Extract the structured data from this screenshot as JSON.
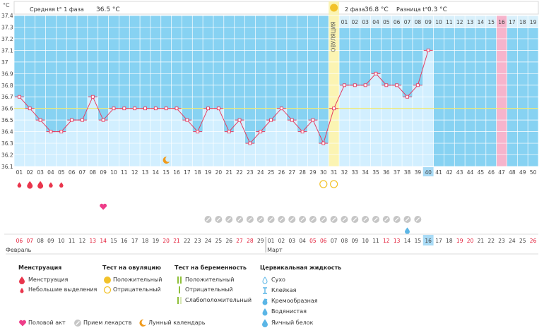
{
  "chart_data": {
    "type": "line",
    "y_unit": "°C",
    "ylim": [
      36.1,
      37.4
    ],
    "yticks": [
      "36.1",
      "36.2",
      "36.3",
      "36.4",
      "36.5",
      "36.6",
      "36.7",
      "36.8",
      "36.9",
      "37",
      "37.1",
      "37.2",
      "37.3",
      "37.4"
    ],
    "cycle_days": [
      "01",
      "02",
      "03",
      "04",
      "05",
      "06",
      "07",
      "08",
      "09",
      "10",
      "11",
      "12",
      "13",
      "14",
      "15",
      "16",
      "17",
      "18",
      "19",
      "20",
      "21",
      "22",
      "23",
      "24",
      "25",
      "26",
      "27",
      "28",
      "29",
      "30",
      "31",
      "32",
      "33",
      "34",
      "35",
      "36",
      "37",
      "38",
      "39",
      "40",
      "41",
      "42",
      "43",
      "44",
      "45",
      "46",
      "47",
      "48",
      "49",
      "50"
    ],
    "temperatures": [
      36.7,
      36.6,
      36.5,
      36.4,
      36.4,
      36.5,
      36.5,
      36.7,
      36.5,
      36.6,
      36.6,
      36.6,
      36.6,
      36.6,
      36.6,
      36.6,
      36.5,
      36.4,
      36.6,
      36.6,
      36.4,
      36.5,
      36.3,
      36.4,
      36.5,
      36.6,
      36.5,
      36.4,
      36.5,
      36.3,
      36.6,
      36.8,
      36.8,
      36.8,
      36.9,
      36.8,
      36.8,
      36.7,
      36.8,
      37.1
    ],
    "cover_line": 36.6,
    "ovulation_day": 31,
    "ovulation_label": "ОВУЛЯЦИЯ",
    "current_day": 40,
    "expected_period_day": 47,
    "phase1": {
      "label": "Средняя t° 1 фаза",
      "value": "36.5 °C"
    },
    "phase2": {
      "label": "2 фаза",
      "value": "36.8 °C"
    },
    "difference": {
      "label": "Разница t°",
      "value": "0.3 °C"
    },
    "phase2_row_days": [
      "01",
      "02",
      "03",
      "04",
      "05",
      "06",
      "07",
      "08",
      "09",
      "10",
      "11",
      "12",
      "13",
      "14",
      "15",
      "16",
      "17",
      "18",
      "19"
    ],
    "calendar_dates": [
      "06",
      "07",
      "08",
      "09",
      "10",
      "11",
      "12",
      "13",
      "14",
      "15",
      "16",
      "17",
      "18",
      "19",
      "20",
      "21",
      "22",
      "23",
      "24",
      "25",
      "26",
      "27",
      "28",
      "29",
      "01",
      "02",
      "03",
      "04",
      "05",
      "06",
      "07",
      "08",
      "09",
      "10",
      "11",
      "12",
      "13",
      "14",
      "15",
      "16",
      "17",
      "18",
      "19",
      "20",
      "21",
      "22",
      "23",
      "24",
      "25",
      "26"
    ],
    "calendar_weekend": [
      true,
      true,
      false,
      false,
      false,
      false,
      false,
      true,
      true,
      false,
      false,
      false,
      false,
      false,
      true,
      true,
      false,
      false,
      false,
      false,
      false,
      true,
      true,
      false,
      false,
      false,
      false,
      false,
      true,
      true,
      false,
      false,
      false,
      false,
      false,
      true,
      true,
      false,
      false,
      false,
      false,
      false,
      true,
      true,
      false,
      false,
      false,
      false,
      false,
      true
    ],
    "months": [
      {
        "label": "Февраль",
        "start_day": 1
      },
      {
        "label": "Март",
        "start_day": 25
      }
    ],
    "menstruation_heavy_days": [
      2,
      3
    ],
    "menstruation_light_days": [
      1,
      4,
      5
    ],
    "ovulation_test_negative_days": [
      30,
      31
    ],
    "intercourse_days": [
      9
    ],
    "medication_days": [
      19,
      20,
      21,
      22,
      23,
      24,
      25,
      26,
      27,
      28,
      29,
      30,
      31,
      32,
      33,
      34,
      35,
      36,
      37,
      38,
      39
    ],
    "moon_days": [
      15
    ],
    "cervical_fluid": [
      {
        "day": 38,
        "type": "egg-white"
      }
    ]
  },
  "legend": {
    "menstruation": {
      "title": "Менструация",
      "heavy": "Менструация",
      "light": "Небольшие выделения"
    },
    "ovulation_test": {
      "title": "Тест на овуляцию",
      "positive": "Положительный",
      "negative": "Отрицательный"
    },
    "pregnancy_test": {
      "title": "Тест на беременность",
      "positive": "Положительный",
      "negative": "Отрицательный",
      "weak": "Слабоположительный"
    },
    "cervical": {
      "title": "Цервикальная жидкость",
      "dry": "Сухо",
      "sticky": "Клейкая",
      "creamy": "Кремообразная",
      "watery": "Водянистая",
      "eggwhite": "Яичный белок"
    },
    "intercourse": "Половой акт",
    "medication": "Прием лекарств",
    "moon": "Лунный календарь"
  },
  "colors": {
    "chart_bg": "#87d2f2",
    "fill": "#d2efff",
    "grid": "#ffffff",
    "line": "#e53d62",
    "marker": "#ffffff",
    "cover_line": "#f2e86a",
    "ovulation_band": "#fbf4b3",
    "expected_period": "#f6b4cc",
    "current_day": "#a9dbf6",
    "menstruation": "#e9354c",
    "ovulation_test": "#f2c22a",
    "intercourse": "#ee3d89",
    "medication": "#c6c6c6",
    "moon": "#f09a1c",
    "cervical": "#5bb6e6",
    "text": "#444444",
    "weekend": "#e3203b"
  }
}
